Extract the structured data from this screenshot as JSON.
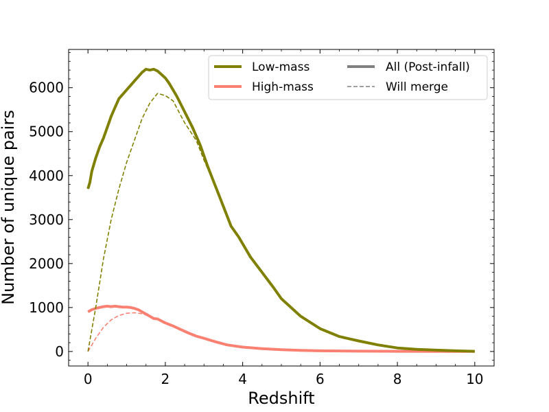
{
  "chart_data": {
    "type": "line",
    "title": "",
    "xlabel": "Redshift",
    "ylabel": "Number of unique pairs",
    "xlim": [
      -0.5,
      10.5
    ],
    "ylim": [
      -330,
      6870
    ],
    "xticks": [
      0,
      2,
      4,
      6,
      8,
      10
    ],
    "xtick_labels": [
      "0",
      "2",
      "4",
      "6",
      "8",
      "10"
    ],
    "yticks": [
      0,
      1000,
      2000,
      3000,
      4000,
      5000,
      6000
    ],
    "ytick_labels": [
      "0",
      "1000",
      "2000",
      "3000",
      "4000",
      "5000",
      "6000"
    ],
    "grid": false,
    "legend_position": "top-right",
    "legend": [
      {
        "label": "Low-mass",
        "color": "#808000",
        "style": "solid"
      },
      {
        "label": "High-mass",
        "color": "#fa8072",
        "style": "solid"
      },
      {
        "label": "All (Post-infall)",
        "color": "#808080",
        "style": "solid"
      },
      {
        "label": "Will merge",
        "color": "#808080",
        "style": "dashed"
      }
    ],
    "series": [
      {
        "name": "Low-mass",
        "group": "All (Post-infall)",
        "color": "#808000",
        "style": "solid",
        "x": [
          0,
          0.05,
          0.1,
          0.15,
          0.2,
          0.3,
          0.4,
          0.5,
          0.6,
          0.7,
          0.8,
          0.9,
          1.0,
          1.1,
          1.2,
          1.3,
          1.4,
          1.5,
          1.6,
          1.7,
          1.8,
          1.9,
          2.0,
          2.1,
          2.3,
          2.5,
          2.7,
          2.9,
          3.1,
          3.3,
          3.5,
          3.7,
          3.9,
          4.0,
          4.2,
          4.5,
          4.8,
          5.0,
          5.5,
          6.0,
          6.5,
          7.0,
          7.5,
          8.0,
          8.5,
          9.0,
          9.5,
          10.0
        ],
        "values": [
          3700,
          3850,
          4100,
          4250,
          4400,
          4650,
          4850,
          5100,
          5350,
          5550,
          5750,
          5850,
          5950,
          6050,
          6150,
          6250,
          6350,
          6420,
          6400,
          6420,
          6380,
          6300,
          6220,
          6100,
          5800,
          5450,
          5100,
          4700,
          4200,
          3750,
          3300,
          2850,
          2600,
          2450,
          2150,
          1800,
          1450,
          1200,
          800,
          520,
          340,
          240,
          150,
          80,
          50,
          30,
          15,
          5
        ]
      },
      {
        "name": "Low-mass",
        "group": "Will merge",
        "color": "#808000",
        "style": "dashed",
        "x": [
          0,
          0.2,
          0.4,
          0.6,
          0.8,
          1.0,
          1.2,
          1.4,
          1.6,
          1.8,
          2.0,
          2.2,
          2.5,
          2.8,
          3.0,
          3.3,
          3.5,
          3.7
        ],
        "values": [
          0,
          1000,
          2100,
          3000,
          3700,
          4300,
          4800,
          5300,
          5650,
          5870,
          5820,
          5700,
          5200,
          4800,
          4350,
          3750,
          3300,
          2850
        ]
      },
      {
        "name": "High-mass",
        "group": "All (Post-infall)",
        "color": "#fa8072",
        "style": "solid",
        "x": [
          0,
          0.1,
          0.2,
          0.3,
          0.4,
          0.5,
          0.6,
          0.7,
          0.8,
          0.9,
          1.0,
          1.1,
          1.2,
          1.3,
          1.4,
          1.5,
          1.6,
          1.7,
          1.8,
          2.0,
          2.2,
          2.4,
          2.6,
          2.8,
          3.0,
          3.3,
          3.6,
          4.0,
          4.5,
          5.0,
          5.5,
          6.0,
          7.0,
          8.0,
          9.0,
          10.0
        ],
        "values": [
          900,
          950,
          980,
          1000,
          1020,
          1030,
          1020,
          1030,
          1020,
          1010,
          1010,
          1000,
          980,
          950,
          900,
          850,
          800,
          750,
          740,
          650,
          580,
          500,
          420,
          350,
          300,
          220,
          150,
          100,
          65,
          40,
          25,
          15,
          8,
          4,
          2,
          1
        ]
      },
      {
        "name": "High-mass",
        "group": "Will merge",
        "color": "#fa8072",
        "style": "dashed",
        "x": [
          0,
          0.2,
          0.4,
          0.6,
          0.8,
          1.0,
          1.2,
          1.4,
          1.6,
          1.8
        ],
        "values": [
          0,
          300,
          550,
          720,
          820,
          870,
          880,
          860,
          800,
          740
        ]
      }
    ]
  }
}
